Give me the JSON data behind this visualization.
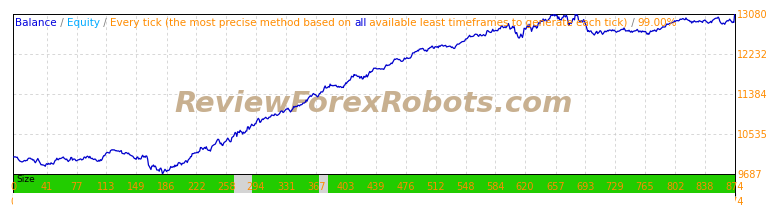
{
  "bg_color": "#ffffff",
  "line_color": "#0000cc",
  "grid_color": "#c8c8c8",
  "grid_linestyle": "--",
  "y_min": 9687,
  "y_max": 13080,
  "x_min": 0,
  "x_max": 874,
  "y_ticks": [
    9687,
    10535,
    11384,
    12232,
    13080
  ],
  "x_ticks": [
    0,
    41,
    77,
    113,
    149,
    186,
    222,
    258,
    294,
    331,
    367,
    403,
    439,
    476,
    512,
    548,
    584,
    620,
    657,
    693,
    729,
    765,
    802,
    838,
    874
  ],
  "watermark": "ReviewForexRobots.com",
  "watermark_color": "#c8b090",
  "size_label": "Size",
  "size_bar_color": "#22cc00",
  "size_bg_color": "#d4d4d4",
  "border_color": "#000000",
  "tick_label_color": "#ff8c00",
  "title_parts": [
    {
      "text": "Balance",
      "color": "#0000dd"
    },
    {
      "text": " / ",
      "color": "#808080"
    },
    {
      "text": "Equity",
      "color": "#00aaff"
    },
    {
      "text": " / ",
      "color": "#808080"
    },
    {
      "text": "Every tick (the most precise method based on ",
      "color": "#ff8c00"
    },
    {
      "text": "all",
      "color": "#0000dd"
    },
    {
      "text": " available least timeframes to generate each tick)",
      "color": "#ff8c00"
    },
    {
      "text": " / ",
      "color": "#808080"
    },
    {
      "text": "99.00%",
      "color": "#ff8c00"
    }
  ],
  "title_fontsize": 7.5,
  "tick_fontsize": 7.0,
  "line_width": 0.9
}
